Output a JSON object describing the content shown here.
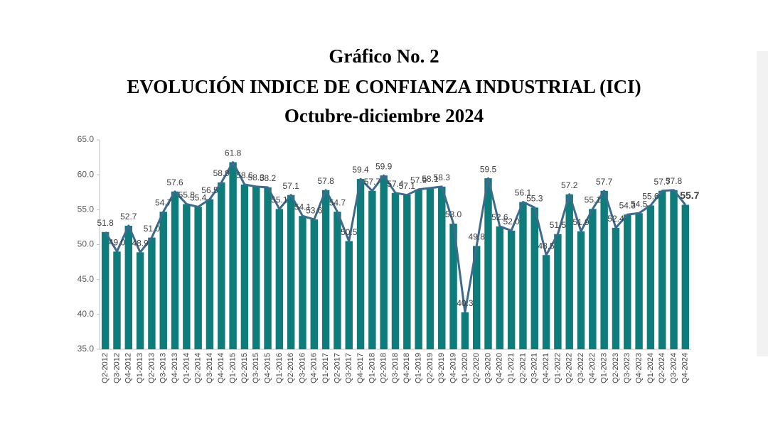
{
  "chart_data": {
    "type": "bar",
    "title": [
      "Gráfico No. 2",
      "EVOLUCIÓN INDICE DE CONFIANZA INDUSTRIAL (ICI)",
      "Octubre-diciembre 2024"
    ],
    "categories": [
      "Q2-2012",
      "Q3-2012",
      "Q4-2012",
      "Q1-2013",
      "Q2-2013",
      "Q3-2013",
      "Q4-2013",
      "Q1-2014",
      "Q2-2014",
      "Q3-2014",
      "Q4-2014",
      "Q1-2015",
      "Q2-2015",
      "Q3-2015",
      "Q4-2015",
      "Q1-2016",
      "Q2-2016",
      "Q3-2016",
      "Q4-2016",
      "Q1-2017",
      "Q2-2017",
      "Q3-2017",
      "Q4-2017",
      "Q1-2018",
      "Q2-2018",
      "Q3-2018",
      "Q4-2018",
      "Q1-2019",
      "Q2-2019",
      "Q3-2019",
      "Q4-2019",
      "Q1-2020",
      "Q2-2020",
      "Q3-2020",
      "Q4-2020",
      "Q1-2021",
      "Q2-2021",
      "Q3-2021",
      "Q4-2021",
      "Q1-2022",
      "Q2-2022",
      "Q3-2022",
      "Q4-2022",
      "Q1-2023",
      "Q2-2023",
      "Q3-2023",
      "Q4-2023",
      "Q1-2024",
      "Q2-2024",
      "Q3-2024",
      "Q4-2024"
    ],
    "values": [
      51.8,
      49.0,
      52.7,
      48.9,
      51.0,
      54.7,
      57.6,
      55.8,
      55.4,
      56.5,
      58.9,
      61.8,
      58.6,
      58.3,
      58.2,
      55.1,
      57.1,
      54.1,
      53.6,
      57.8,
      54.7,
      50.5,
      59.4,
      57.7,
      59.9,
      57.4,
      57.1,
      57.9,
      58.1,
      58.3,
      53.0,
      40.3,
      49.8,
      59.5,
      52.6,
      52.0,
      56.1,
      55.3,
      48.5,
      51.5,
      57.2,
      51.9,
      55.1,
      57.7,
      52.4,
      54.3,
      54.5,
      55.6,
      57.7,
      57.8,
      55.7
    ],
    "value_labels": [
      "51.8",
      "49.0",
      "52.7",
      "48.9",
      "51.0",
      "54.7",
      "57.6",
      "55.8",
      "55.4",
      "56.5",
      "58.9",
      "61.8",
      "58.6",
      "58.3",
      "58.2",
      "55.1",
      "57.1",
      "54.1",
      "53.6",
      "57.8",
      "54.7",
      "50.5",
      "59.4",
      "57.7",
      "59.9",
      "57.4",
      "57.1",
      "57.9",
      "58.1",
      "58.3",
      "53.0",
      "40.3",
      "49.8",
      "59.5",
      "52.6",
      "52.0",
      "56.1",
      "55.3",
      "48.5",
      "51.5",
      "57.2",
      "51.9",
      "55.1",
      "57.7",
      "52.4",
      "54.3",
      "54.5",
      "55.6",
      "57.7",
      "57.8",
      "55.7"
    ],
    "color": "#0e7c7b",
    "line_color": "#3f6a8c",
    "ylim": [
      35,
      65
    ],
    "yticks": [
      {
        "value": 35,
        "label": "35.0"
      },
      {
        "value": 40,
        "label": "40.0"
      },
      {
        "value": 45,
        "label": "45.0"
      },
      {
        "value": 50,
        "label": "50.0"
      },
      {
        "value": 55,
        "label": "55.0"
      },
      {
        "value": 60,
        "label": "60.0"
      },
      {
        "value": 65,
        "label": "65.0"
      }
    ]
  }
}
